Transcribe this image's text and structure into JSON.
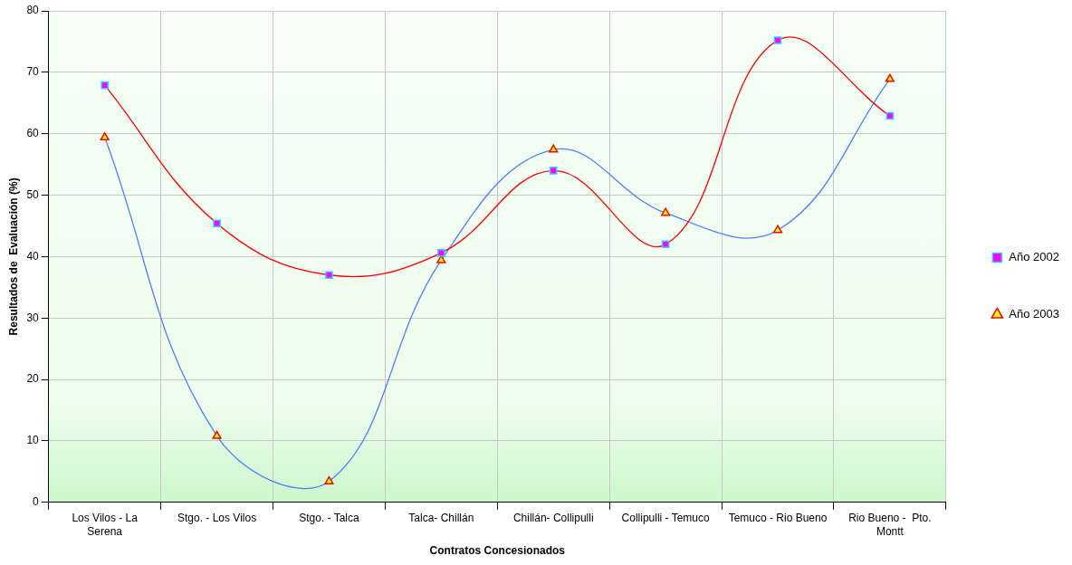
{
  "chart_data": {
    "type": "line",
    "xlabel": "Contratos Concesionados",
    "ylabel": "Resultados de  Evaluación (%)",
    "categories": [
      "Los Vilos - La Serena",
      "Stgo. - Los Vilos",
      "Stgo. - Talca",
      "Talca- Chillán",
      "Chillán- Collipulli",
      "Collipulli - Temuco",
      "Temuco - Rio Bueno",
      "Rio Bueno -  Pto. Montt"
    ],
    "series": [
      {
        "name": "Año 2002",
        "color": "#ff0000",
        "marker": "square",
        "values": [
          67.9,
          45.4,
          37,
          40.6,
          54,
          42,
          75.2,
          62.9
        ]
      },
      {
        "name": "Año 2003",
        "color": "#4f7fff",
        "marker": "triangle",
        "values": [
          59.4,
          10.8,
          3.4,
          39.4,
          57.4,
          47.1,
          44.3,
          68.9
        ]
      }
    ],
    "ylim": [
      0,
      80
    ],
    "yticks": [
      0,
      10,
      20,
      30,
      40,
      50,
      60,
      70,
      80
    ],
    "grid": true,
    "legend": "right"
  }
}
